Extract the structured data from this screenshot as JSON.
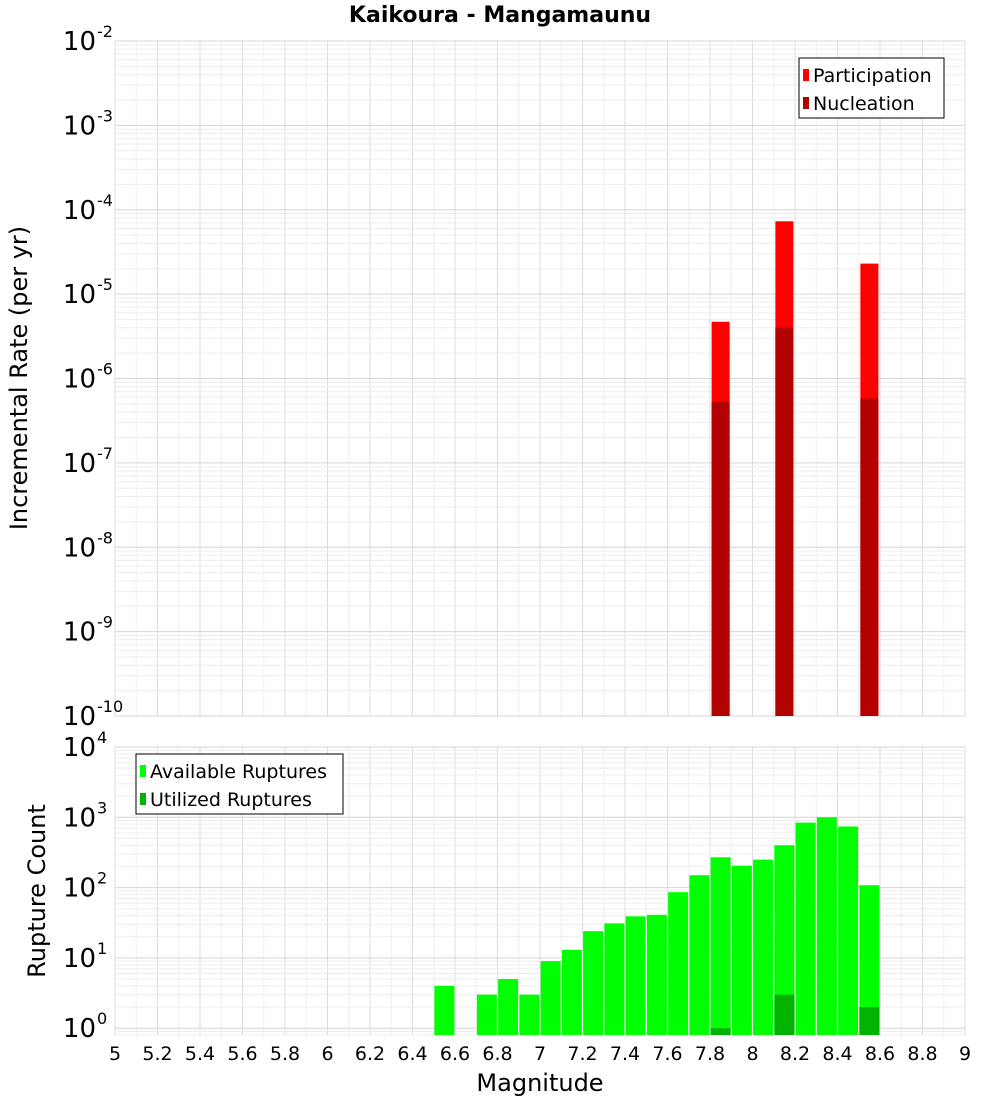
{
  "chart_data": [
    {
      "type": "bar",
      "title": "Kaikoura - Mangamaunu",
      "xlabel": "",
      "ylabel": "Incremental Rate (per yr)",
      "xlim": [
        5,
        9
      ],
      "ylim": [
        1e-10,
        0.01
      ],
      "yscale": "log",
      "y_ticks": [
        {
          "base": "10",
          "exp": "-10"
        },
        {
          "base": "10",
          "exp": "-9"
        },
        {
          "base": "10",
          "exp": "-8"
        },
        {
          "base": "10",
          "exp": "-7"
        },
        {
          "base": "10",
          "exp": "-6"
        },
        {
          "base": "10",
          "exp": "-5"
        },
        {
          "base": "10",
          "exp": "-4"
        },
        {
          "base": "10",
          "exp": "-3"
        },
        {
          "base": "10",
          "exp": "-2"
        }
      ],
      "legend_position": "top-right",
      "series": [
        {
          "name": "Participation",
          "color": "#ff0000",
          "x": [
            7.85,
            8.15,
            8.55
          ],
          "values": [
            4.7e-06,
            7.3e-05,
            2.3e-05
          ]
        },
        {
          "name": "Nucleation",
          "color": "#b30000",
          "x": [
            7.85,
            8.15,
            8.55
          ],
          "values": [
            5.3e-07,
            4e-06,
            5.8e-07
          ]
        }
      ]
    },
    {
      "type": "bar",
      "title": "",
      "xlabel": "Magnitude",
      "ylabel": "Rupture Count",
      "xlim": [
        5,
        9
      ],
      "ylim": [
        0.8,
        10000
      ],
      "yscale": "log",
      "y_ticks": [
        {
          "base": "10",
          "exp": "0"
        },
        {
          "base": "10",
          "exp": "1"
        },
        {
          "base": "10",
          "exp": "2"
        },
        {
          "base": "10",
          "exp": "3"
        },
        {
          "base": "10",
          "exp": "4"
        }
      ],
      "x_ticks": [
        "5",
        "5.2",
        "5.4",
        "5.6",
        "5.8",
        "6",
        "6.2",
        "6.4",
        "6.6",
        "6.8",
        "7",
        "7.2",
        "7.4",
        "7.6",
        "7.8",
        "8",
        "8.2",
        "8.4",
        "8.6",
        "8.8",
        "9"
      ],
      "legend_position": "top-left",
      "series": [
        {
          "name": "Available Ruptures",
          "color": "#00ff00",
          "x": [
            6.55,
            6.75,
            6.85,
            6.95,
            7.05,
            7.15,
            7.25,
            7.35,
            7.45,
            7.55,
            7.65,
            7.75,
            7.85,
            7.95,
            8.05,
            8.15,
            8.25,
            8.35,
            8.45,
            8.55
          ],
          "values": [
            4,
            3,
            5,
            3,
            9,
            13,
            24,
            31,
            39,
            41,
            86,
            150,
            270,
            205,
            250,
            400,
            840,
            1000,
            740,
            108
          ]
        },
        {
          "name": "Utilized Ruptures",
          "color": "#00b300",
          "x": [
            7.85,
            8.15,
            8.55
          ],
          "values": [
            1,
            3,
            2
          ]
        }
      ]
    }
  ]
}
